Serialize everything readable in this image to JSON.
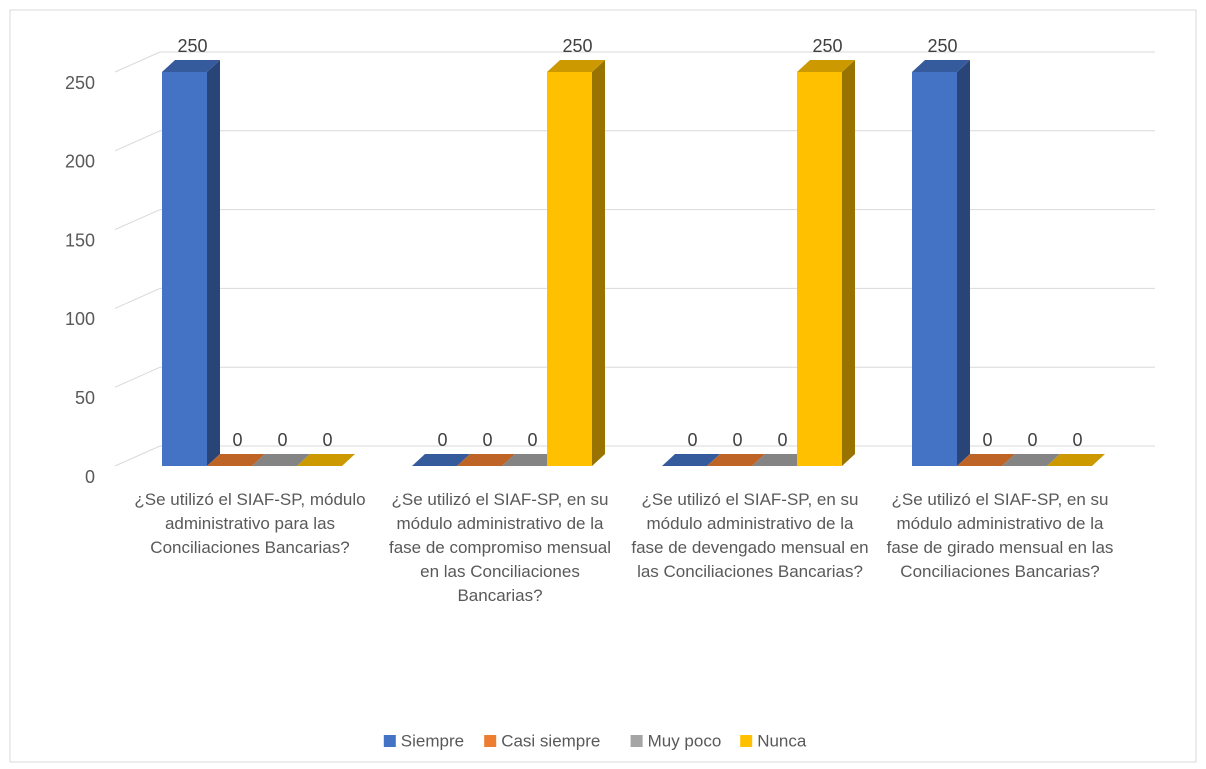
{
  "chart_data": {
    "type": "bar3d",
    "categories": [
      "¿Se utilizó el SIAF-SP, módulo administrativo para las Conciliaciones Bancarias?",
      "¿Se utilizó el SIAF-SP, en su módulo administrativo de la fase de compromiso mensual en las Conciliaciones Bancarias?",
      "¿Se utilizó el SIAF-SP, en su módulo administrativo de la fase de devengado mensual en las Conciliaciones Bancarias?",
      "¿Se utilizó el SIAF-SP, en su módulo administrativo de la fase de girado mensual en las Conciliaciones Bancarias?"
    ],
    "series": [
      {
        "name": "Siempre",
        "color": "#4472c4",
        "values": [
          250,
          0,
          0,
          250
        ]
      },
      {
        "name": "Casi siempre",
        "color": "#ed7d31",
        "values": [
          0,
          0,
          0,
          0
        ]
      },
      {
        "name": "Muy poco",
        "color": "#a5a5a5",
        "values": [
          0,
          0,
          0,
          0
        ]
      },
      {
        "name": "Nunca",
        "color": "#ffc000",
        "values": [
          0,
          250,
          250,
          0
        ]
      }
    ],
    "ylim": [
      0,
      250
    ],
    "yticks": [
      0,
      50,
      100,
      150,
      200,
      250
    ],
    "grid": true,
    "legend": "bottom"
  }
}
